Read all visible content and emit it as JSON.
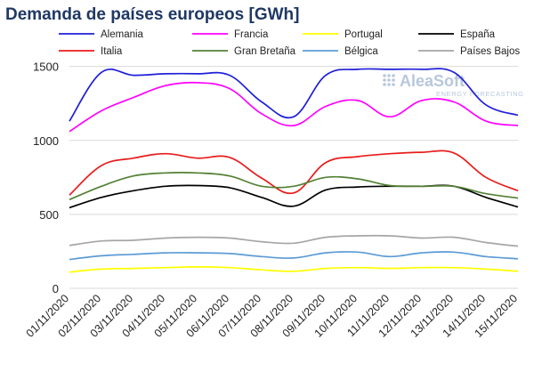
{
  "chart_data": {
    "type": "line",
    "title": "Demanda de países europeos [GWh]",
    "xlabel": "",
    "ylabel": "",
    "ylim": [
      0,
      1600
    ],
    "yticks": [
      0,
      500,
      1000,
      1500
    ],
    "grid": "horizontal",
    "legend_position": "top",
    "x": [
      "01/11/2020",
      "02/11/2020",
      "03/11/2020",
      "04/11/2020",
      "05/11/2020",
      "06/11/2020",
      "07/11/2020",
      "08/11/2020",
      "09/11/2020",
      "10/11/2020",
      "11/11/2020",
      "12/11/2020",
      "13/11/2020",
      "14/11/2020",
      "15/11/2020"
    ],
    "series": [
      {
        "name": "Alemania",
        "color": "#1f1fd8",
        "values": [
          1130,
          1460,
          1440,
          1450,
          1450,
          1440,
          1260,
          1160,
          1440,
          1480,
          1480,
          1480,
          1460,
          1240,
          1170
        ]
      },
      {
        "name": "Francia",
        "color": "#ff00ff",
        "values": [
          1060,
          1200,
          1290,
          1370,
          1390,
          1350,
          1180,
          1100,
          1230,
          1270,
          1160,
          1270,
          1260,
          1130,
          1100
        ]
      },
      {
        "name": "Portugal",
        "color": "#ffff00",
        "values": [
          110,
          130,
          135,
          140,
          145,
          140,
          125,
          115,
          135,
          140,
          135,
          140,
          140,
          130,
          115
        ]
      },
      {
        "name": "España",
        "color": "#000000",
        "values": [
          545,
          615,
          660,
          690,
          695,
          680,
          615,
          555,
          665,
          685,
          690,
          690,
          690,
          615,
          550
        ]
      },
      {
        "name": "Italia",
        "color": "#e81c1c",
        "values": [
          630,
          830,
          880,
          910,
          880,
          885,
          745,
          645,
          850,
          890,
          910,
          920,
          915,
          750,
          660
        ]
      },
      {
        "name": "Gran Bretaña",
        "color": "#538135",
        "values": [
          600,
          690,
          760,
          780,
          780,
          760,
          690,
          690,
          750,
          740,
          695,
          690,
          690,
          640,
          610
        ]
      },
      {
        "name": "Bélgica",
        "color": "#5b9bd5",
        "values": [
          195,
          220,
          230,
          240,
          240,
          235,
          215,
          205,
          240,
          245,
          215,
          240,
          245,
          215,
          200
        ]
      },
      {
        "name": "Países Bajos",
        "color": "#a6a6a6",
        "values": [
          290,
          320,
          325,
          340,
          345,
          340,
          315,
          305,
          345,
          355,
          355,
          340,
          345,
          310,
          285
        ]
      }
    ]
  },
  "logo": {
    "name": "AleaSoft",
    "tagline": "ENERGY FORECASTING"
  }
}
